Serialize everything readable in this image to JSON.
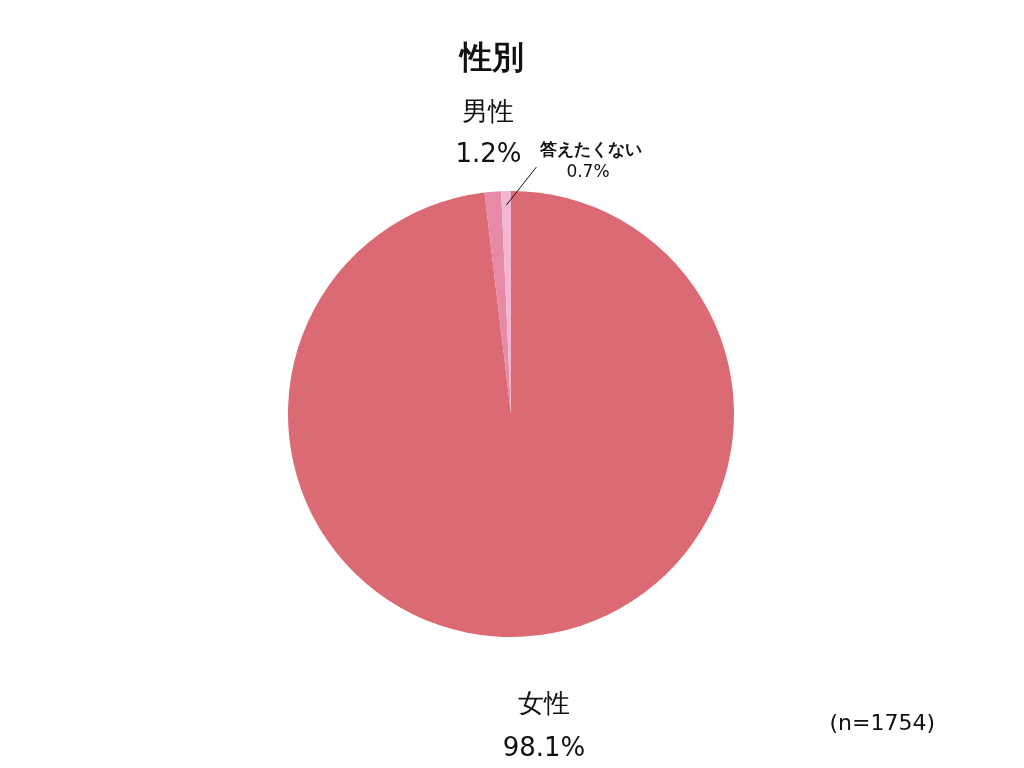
{
  "chart_data": {
    "type": "pie",
    "title": "性別",
    "categories": [
      "女性",
      "男性",
      "答えたくない"
    ],
    "values": [
      98.1,
      1.2,
      0.7
    ],
    "value_labels": [
      "98.1%",
      "1.2%",
      "0.7%"
    ],
    "colors": [
      "#dc6a74",
      "#e68aa8",
      "#f2b6d0"
    ],
    "annotations": [
      "(n=1754)"
    ]
  }
}
